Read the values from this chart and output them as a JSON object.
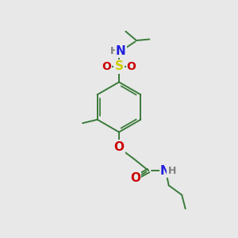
{
  "bg_color": "#e8e8e8",
  "bond_color": "#3a7a3a",
  "N_color": "#2020dd",
  "O_color": "#cc0000",
  "S_color": "#cccc00",
  "H_color": "#808080",
  "font_size": 9,
  "bond_width": 1.4,
  "figsize": [
    3.0,
    3.0
  ],
  "dpi": 100,
  "xlim": [
    0,
    10
  ],
  "ylim": [
    0,
    10
  ]
}
